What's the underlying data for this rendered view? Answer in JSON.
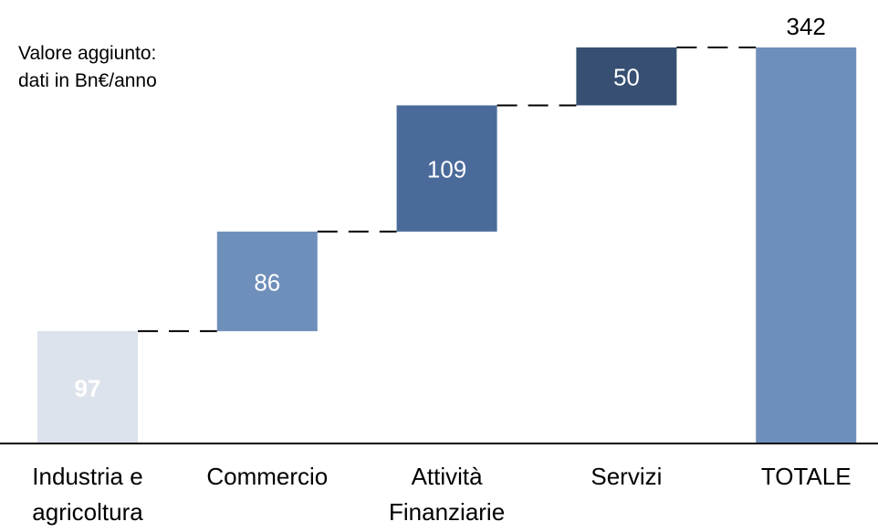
{
  "chart_data": {
    "type": "waterfall",
    "annotation": "Valore aggiunto:\ndati in Bn€/anno",
    "categories": [
      "Industria e\nagricoltura",
      "Commercio",
      "Attività\nFinanziarie",
      "Servizi",
      "TOTALE"
    ],
    "values": [
      97,
      86,
      109,
      50,
      342
    ],
    "colors": [
      "#dce3ec",
      "#6f8fbb",
      "#4a6a9a",
      "#364f73",
      "#6f8fbb"
    ]
  }
}
